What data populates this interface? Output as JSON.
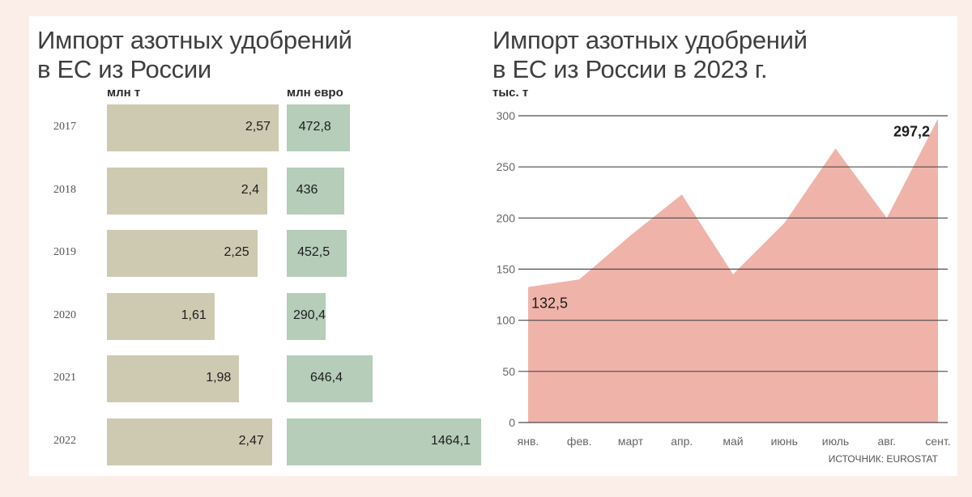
{
  "colors": {
    "background": "#fbeee9",
    "panel": "#ffffff",
    "bar_tonnes": "#cdcab1",
    "bar_euro": "#b5cdb9",
    "area_fill": "#f0b3aa",
    "gridline": "#4a4a4a"
  },
  "left_chart": {
    "title_line1": "Импорт азотных удобрений",
    "title_line2": "в ЕС из России",
    "unit_tonnes": "млн т",
    "unit_euro": "млн евро"
  },
  "right_chart": {
    "title_line1": "Импорт азотных удобрений",
    "title_line2": "в ЕС из России в 2023 г.",
    "unit": "тыс. т",
    "first_label": "132,5",
    "last_label": "297,2",
    "source": "ИСТОЧНИК: EUROSTAT"
  },
  "chart_data": [
    {
      "type": "bar",
      "orientation": "horizontal",
      "title": "Импорт азотных удобрений в ЕС из России",
      "categories": [
        "2017",
        "2018",
        "2019",
        "2020",
        "2021",
        "2022"
      ],
      "series": [
        {
          "name": "млн т",
          "values": [
            2.57,
            2.4,
            2.25,
            1.61,
            1.98,
            2.47
          ],
          "labels": [
            "2,57",
            "2,4",
            "2,25",
            "1,61",
            "1,98",
            "2,47"
          ]
        },
        {
          "name": "млн евро",
          "values": [
            472.8,
            436,
            452.5,
            290.4,
            646.4,
            1464.1
          ],
          "labels": [
            "472,8",
            "436",
            "452,5",
            "290,4",
            "646,4",
            "1464,1"
          ]
        }
      ]
    },
    {
      "type": "area",
      "title": "Импорт азотных удобрений в ЕС из России в 2023 г.",
      "ylabel": "тыс. т",
      "xlabel": "",
      "x": [
        "янв.",
        "фев.",
        "март",
        "апр.",
        "май",
        "июнь",
        "июль",
        "авг.",
        "сент."
      ],
      "values": [
        132.5,
        140,
        183,
        223,
        145,
        195,
        268,
        200,
        297.2
      ],
      "ylim": [
        0,
        300
      ],
      "yticks": [
        0,
        50,
        100,
        150,
        200,
        250,
        300
      ],
      "grid": true,
      "annotations": [
        {
          "label": "132,5",
          "x": "янв."
        },
        {
          "label": "297,2",
          "x": "сент."
        }
      ],
      "source": "ИСТОЧНИК: EUROSTAT"
    }
  ]
}
